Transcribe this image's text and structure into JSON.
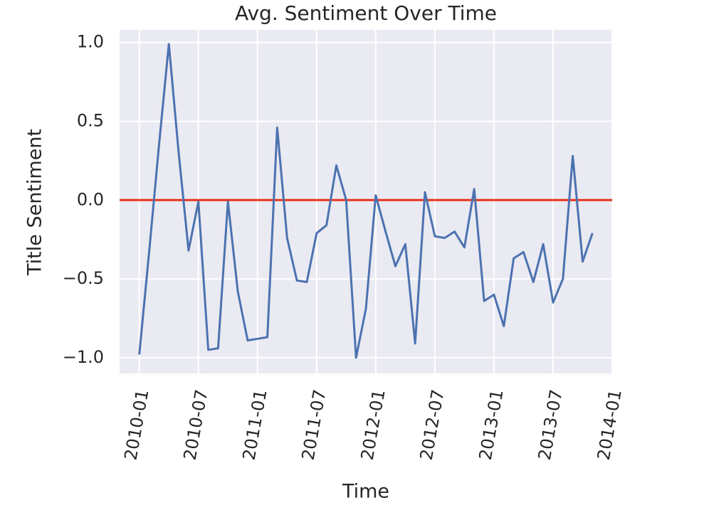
{
  "chart_data": {
    "type": "line",
    "title": "Avg. Sentiment Over Time",
    "x_label": "Time",
    "y_label": "Title Sentiment",
    "x": [
      "2010-01",
      "2010-02",
      "2010-03",
      "2010-04",
      "2010-05",
      "2010-06",
      "2010-07",
      "2010-08",
      "2010-09",
      "2010-10",
      "2010-11",
      "2010-12",
      "2011-01",
      "2011-02",
      "2011-03",
      "2011-04",
      "2011-05",
      "2011-06",
      "2011-07",
      "2011-08",
      "2011-09",
      "2011-10",
      "2011-11",
      "2011-12",
      "2012-01",
      "2012-02",
      "2012-03",
      "2012-04",
      "2012-05",
      "2012-06",
      "2012-07",
      "2012-08",
      "2012-09",
      "2012-10",
      "2012-11",
      "2012-12",
      "2013-01",
      "2013-02",
      "2013-03",
      "2013-04",
      "2013-05",
      "2013-06",
      "2013-07",
      "2013-08",
      "2013-09",
      "2013-10",
      "2013-11"
    ],
    "series": [
      {
        "name": "Title Sentiment",
        "color": "#4c72b0",
        "values": [
          -0.98,
          -0.33,
          0.35,
          0.99,
          0.3,
          -0.32,
          -0.01,
          -0.95,
          -0.94,
          -0.01,
          -0.58,
          -0.89,
          -0.88,
          -0.87,
          0.46,
          -0.24,
          -0.51,
          -0.52,
          -0.21,
          -0.16,
          0.22,
          0.0,
          -1.0,
          -0.69,
          0.03,
          -0.2,
          -0.42,
          -0.28,
          -0.91,
          0.05,
          -0.23,
          -0.24,
          -0.2,
          -0.3,
          0.07,
          -0.64,
          -0.6,
          -0.8,
          -0.37,
          -0.33,
          -0.52,
          -0.28,
          -0.65,
          -0.5,
          0.28,
          -0.39,
          -0.21
        ]
      }
    ],
    "reference_line": {
      "value": 0,
      "color": "#e8331c"
    },
    "xlim": [
      "2009-11",
      "2014-01"
    ],
    "xticks": [
      "2010-01",
      "2010-07",
      "2011-01",
      "2011-07",
      "2012-01",
      "2012-07",
      "2013-01",
      "2013-07",
      "2014-01"
    ],
    "ylim": [
      -1.1,
      1.08
    ],
    "yticks": [
      {
        "value": -1.0,
        "label": "−1.0"
      },
      {
        "value": -0.5,
        "label": "−0.5"
      },
      {
        "value": 0,
        "label": "0.0"
      },
      0.5,
      {
        "value": 1.0,
        "label": "1.0"
      }
    ],
    "grid": true,
    "background": "#eaeaf2"
  }
}
